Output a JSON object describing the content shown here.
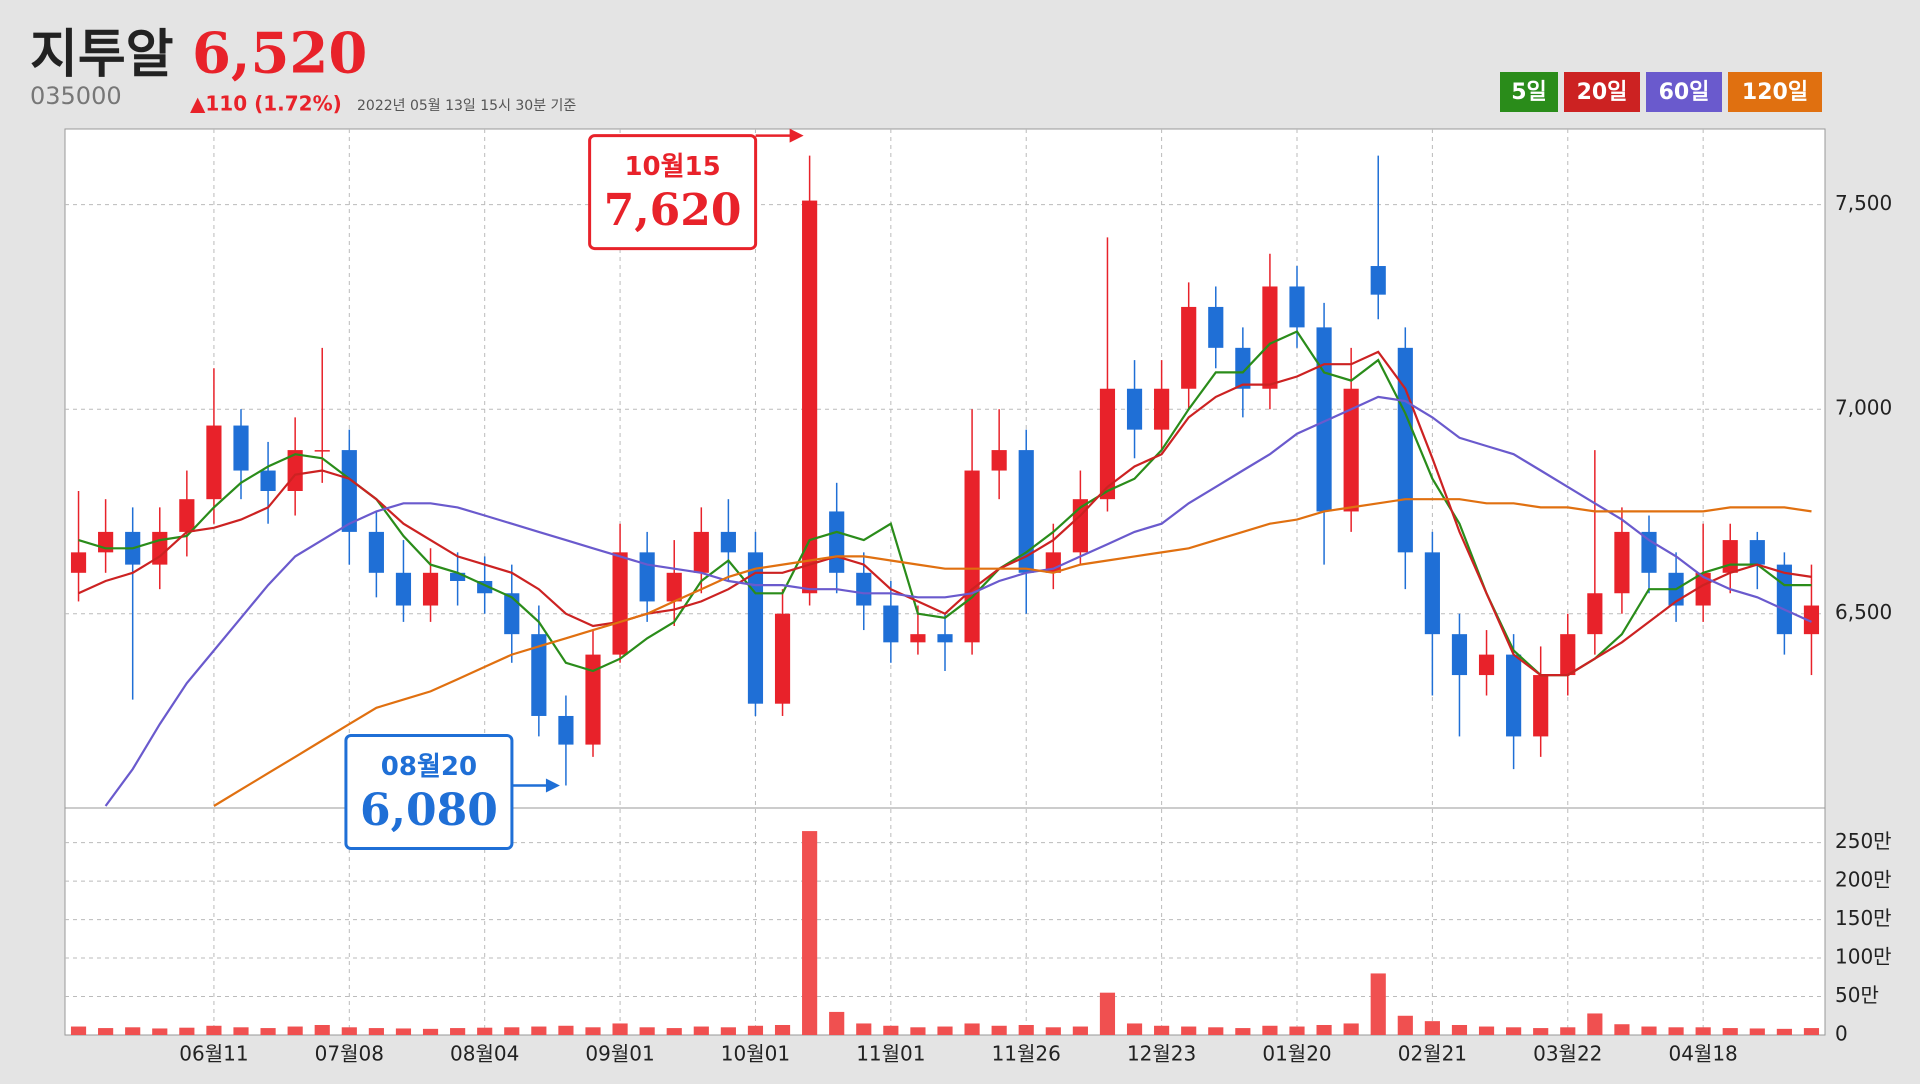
{
  "header": {
    "name": "지투알",
    "price": "6,520",
    "code": "035000",
    "change": "▲110 (1.72%)",
    "timestamp": "2022년 05월 13일 15시 30분 기준"
  },
  "chart_data": {
    "type": "candlestick",
    "categories": [
      null,
      null,
      null,
      null,
      null,
      "06월11",
      null,
      null,
      null,
      null,
      "07월08",
      null,
      null,
      null,
      null,
      "08월04",
      null,
      null,
      null,
      null,
      "09월01",
      null,
      null,
      null,
      null,
      "10월01",
      null,
      null,
      null,
      null,
      "11월01",
      null,
      null,
      null,
      null,
      "11월26",
      null,
      null,
      null,
      null,
      "12월23",
      null,
      null,
      null,
      null,
      "01월20",
      null,
      null,
      null,
      null,
      "02월21",
      null,
      null,
      null,
      null,
      "03월22",
      null,
      null,
      null,
      null,
      "04월18",
      null,
      null,
      null,
      null
    ],
    "ohlc": {
      "open": [
        6600,
        6650,
        6700,
        6620,
        6700,
        6780,
        6960,
        6850,
        6800,
        6900,
        6900,
        6700,
        6600,
        6520,
        6600,
        6580,
        6550,
        6450,
        6250,
        6180,
        6400,
        6650,
        6530,
        6600,
        6700,
        6650,
        6280,
        6550,
        6750,
        6600,
        6520,
        6430,
        6450,
        6430,
        6850,
        6900,
        6600,
        6650,
        6780,
        7050,
        6950,
        7050,
        7250,
        7150,
        7050,
        7300,
        7200,
        6750,
        7350,
        7150,
        6650,
        6450,
        6350,
        6400,
        6200,
        6350,
        6450,
        6550,
        6700,
        6600,
        6520,
        6600,
        6680,
        6620,
        6450
      ],
      "high": [
        6800,
        6780,
        6760,
        6760,
        6850,
        7100,
        7000,
        6920,
        6980,
        7150,
        6950,
        6750,
        6680,
        6660,
        6650,
        6640,
        6620,
        6520,
        6300,
        6460,
        6720,
        6700,
        6680,
        6760,
        6780,
        6700,
        6560,
        7620,
        6820,
        6650,
        6580,
        6520,
        6500,
        7000,
        7000,
        6950,
        6720,
        6850,
        7420,
        7120,
        7120,
        7310,
        7300,
        7200,
        7380,
        7350,
        7260,
        7150,
        7620,
        7200,
        6700,
        6500,
        6460,
        6450,
        6420,
        6500,
        6900,
        6760,
        6740,
        6650,
        6720,
        6720,
        6700,
        6650,
        6620
      ],
      "low": [
        6530,
        6600,
        6290,
        6560,
        6640,
        6720,
        6780,
        6720,
        6740,
        6820,
        6620,
        6540,
        6480,
        6480,
        6520,
        6500,
        6380,
        6200,
        6080,
        6150,
        6380,
        6480,
        6470,
        6550,
        6580,
        6250,
        6250,
        6520,
        6550,
        6460,
        6380,
        6400,
        6360,
        6400,
        6780,
        6500,
        6560,
        6620,
        6750,
        6880,
        6900,
        7000,
        7100,
        6980,
        7000,
        7150,
        6620,
        6700,
        7220,
        6560,
        6300,
        6200,
        6300,
        6120,
        6150,
        6300,
        6400,
        6500,
        6550,
        6480,
        6480,
        6550,
        6560,
        6400,
        6350
      ],
      "close": [
        6650,
        6700,
        6620,
        6700,
        6780,
        6960,
        6850,
        6800,
        6900,
        6900,
        6700,
        6600,
        6520,
        6600,
        6580,
        6550,
        6450,
        6250,
        6180,
        6400,
        6650,
        6530,
        6600,
        6700,
        6650,
        6280,
        6500,
        7510,
        6600,
        6520,
        6430,
        6450,
        6430,
        6850,
        6900,
        6600,
        6650,
        6780,
        7050,
        6950,
        7050,
        7250,
        7150,
        7050,
        7300,
        7200,
        6750,
        7050,
        7280,
        6650,
        6450,
        6350,
        6400,
        6200,
        6350,
        6450,
        6550,
        6700,
        6600,
        6520,
        6600,
        6680,
        6620,
        6450,
        6520
      ],
      "up_color": "#e8222a",
      "down_color": "#1f6fd6"
    },
    "volume": {
      "axis": "y2",
      "color": "#f05050",
      "values": [
        110000,
        90000,
        100000,
        85000,
        95000,
        120000,
        100000,
        90000,
        110000,
        130000,
        100000,
        90000,
        85000,
        80000,
        90000,
        95000,
        100000,
        110000,
        120000,
        100000,
        150000,
        100000,
        90000,
        110000,
        100000,
        120000,
        130000,
        2650000,
        300000,
        150000,
        120000,
        100000,
        110000,
        150000,
        120000,
        130000,
        100000,
        110000,
        550000,
        150000,
        120000,
        110000,
        100000,
        90000,
        120000,
        110000,
        130000,
        150000,
        800000,
        250000,
        180000,
        130000,
        110000,
        100000,
        90000,
        100000,
        280000,
        140000,
        110000,
        100000,
        100000,
        90000,
        85000,
        80000,
        90000
      ]
    },
    "series": [
      {
        "name": "5일",
        "color": "#2a8c1a",
        "values": [
          6680,
          6660,
          6660,
          6680,
          6690,
          6760,
          6820,
          6860,
          6890,
          6880,
          6830,
          6780,
          6690,
          6620,
          6600,
          6570,
          6540,
          6480,
          6380,
          6360,
          6390,
          6440,
          6480,
          6580,
          6630,
          6550,
          6550,
          6680,
          6700,
          6680,
          6720,
          6500,
          6490,
          6540,
          6610,
          6650,
          6700,
          6760,
          6800,
          6830,
          6900,
          7000,
          7090,
          7090,
          7160,
          7190,
          7090,
          7070,
          7120,
          6990,
          6830,
          6720,
          6550,
          6410,
          6350,
          6350,
          6390,
          6450,
          6560,
          6560,
          6600,
          6620,
          6620,
          6570,
          6570
        ]
      },
      {
        "name": "20일",
        "color": "#cc2222",
        "values": [
          6550,
          6580,
          6600,
          6640,
          6700,
          6710,
          6730,
          6760,
          6840,
          6850,
          6830,
          6780,
          6720,
          6680,
          6640,
          6620,
          6600,
          6560,
          6500,
          6470,
          6480,
          6500,
          6510,
          6530,
          6560,
          6600,
          6600,
          6620,
          6640,
          6620,
          6560,
          6530,
          6500,
          6560,
          6610,
          6640,
          6680,
          6740,
          6810,
          6860,
          6890,
          6980,
          7030,
          7060,
          7060,
          7080,
          7110,
          7110,
          7140,
          7050,
          6880,
          6700,
          6550,
          6400,
          6350,
          6350,
          6390,
          6430,
          6480,
          6530,
          6570,
          6600,
          6620,
          6600,
          6590
        ]
      },
      {
        "name": "60일",
        "color": "#6a5acd",
        "values": [
          null,
          6030,
          6120,
          6230,
          6330,
          6410,
          6490,
          6570,
          6640,
          6680,
          6720,
          6750,
          6770,
          6770,
          6760,
          6740,
          6720,
          6700,
          6680,
          6660,
          6640,
          6620,
          6610,
          6600,
          6580,
          6570,
          6570,
          6560,
          6560,
          6550,
          6550,
          6540,
          6540,
          6550,
          6580,
          6600,
          6610,
          6640,
          6670,
          6700,
          6720,
          6770,
          6810,
          6850,
          6890,
          6940,
          6970,
          7000,
          7030,
          7020,
          6980,
          6930,
          6910,
          6890,
          6850,
          6810,
          6770,
          6730,
          6680,
          6640,
          6590,
          6560,
          6540,
          6510,
          6480
        ]
      },
      {
        "name": "120일",
        "color": "#e07010",
        "values": [
          null,
          null,
          null,
          null,
          null,
          6030,
          6070,
          6110,
          6150,
          6190,
          6230,
          6270,
          6290,
          6310,
          6340,
          6370,
          6400,
          6420,
          6440,
          6460,
          6480,
          6500,
          6530,
          6560,
          6590,
          6610,
          6620,
          6630,
          6640,
          6640,
          6630,
          6620,
          6610,
          6610,
          6610,
          6610,
          6600,
          6620,
          6630,
          6640,
          6650,
          6660,
          6680,
          6700,
          6720,
          6730,
          6750,
          6760,
          6770,
          6780,
          6780,
          6780,
          6770,
          6770,
          6760,
          6760,
          6750,
          6750,
          6750,
          6750,
          6750,
          6760,
          6760,
          6760,
          6750
        ]
      }
    ],
    "ylim": [
      6025,
      7685
    ],
    "yticks": [
      {
        "value": 6500,
        "label": "6,500"
      },
      {
        "value": 7000,
        "label": "7,000"
      },
      {
        "value": 7500,
        "label": "7,500"
      }
    ],
    "y2lim": [
      0,
      2950000
    ],
    "y2ticks": [
      0,
      {
        "value": 500000,
        "label": "50만"
      },
      {
        "value": 1000000,
        "label": "100만"
      },
      {
        "value": 1500000,
        "label": "150만"
      },
      {
        "value": 2000000,
        "label": "200만"
      },
      {
        "value": 2500000,
        "label": "250만"
      }
    ],
    "grid": true,
    "annotations": [
      {
        "date": "10월15",
        "value": 7620,
        "label": "7,620",
        "kind": "high",
        "color": "#e8222a"
      },
      {
        "date": "08월20",
        "value": 6080,
        "label": "6,080",
        "kind": "low",
        "color": "#1f6fd6"
      }
    ]
  }
}
